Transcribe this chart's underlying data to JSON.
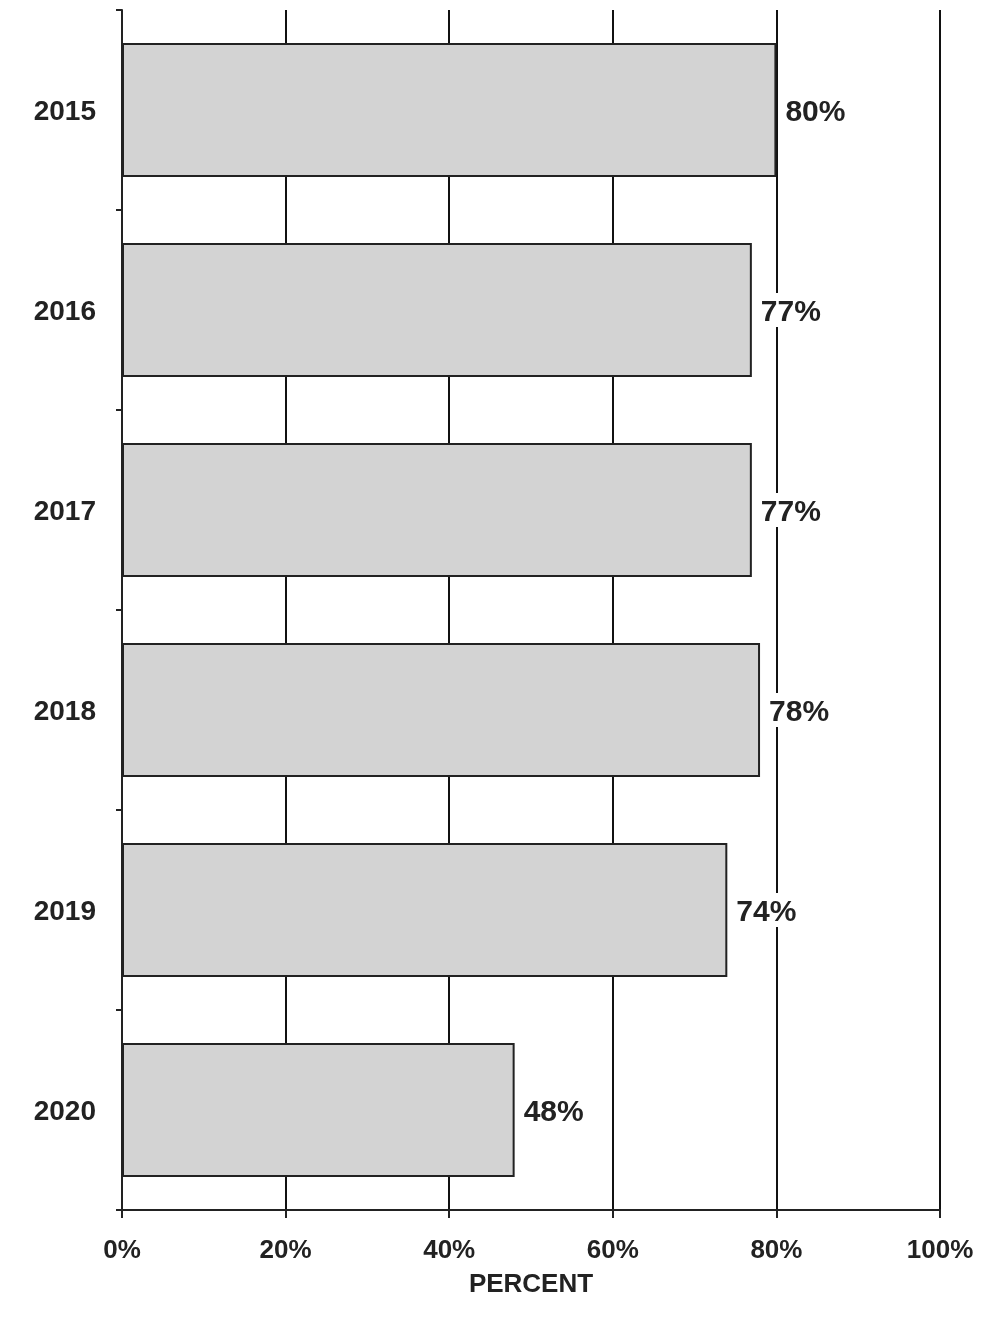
{
  "chart_data": {
    "type": "bar",
    "orientation": "horizontal",
    "xlabel": "PERCENT",
    "categories": [
      "2015",
      "2016",
      "2017",
      "2018",
      "2019",
      "2020"
    ],
    "values": [
      80,
      77,
      77,
      78,
      74,
      48
    ],
    "value_labels": [
      "80%",
      "77%",
      "77%",
      "78%",
      "74%",
      "48%"
    ],
    "color": "#d3d3d3",
    "xlim": [
      0,
      100
    ],
    "xticks": [
      {
        "value": 0,
        "label": "0%"
      },
      {
        "value": 20,
        "label": "20%"
      },
      {
        "value": 40,
        "label": "40%"
      },
      {
        "value": 60,
        "label": "60%"
      },
      {
        "value": 80,
        "label": "80%"
      },
      {
        "value": 100,
        "label": "100%"
      }
    ],
    "grid": "x"
  }
}
